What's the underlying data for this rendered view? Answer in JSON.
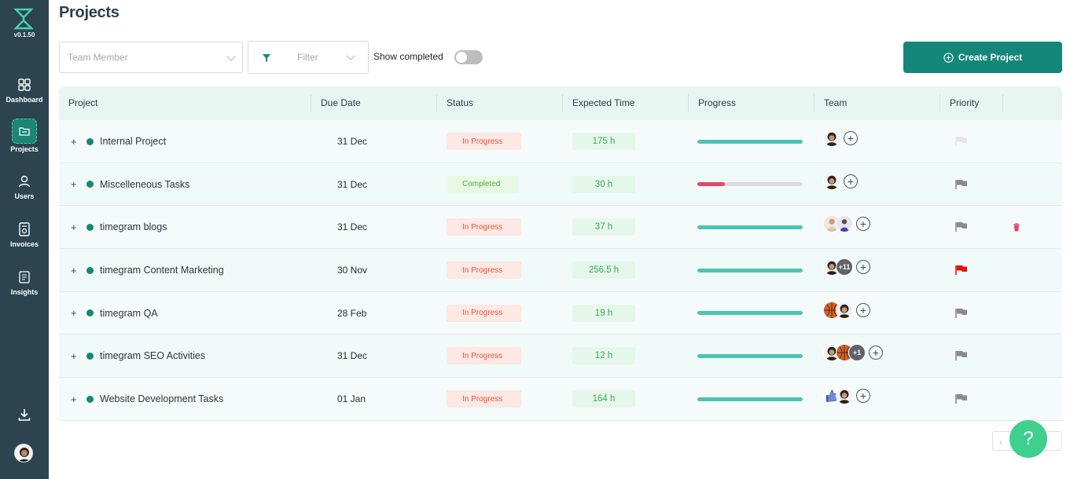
{
  "sidebar": {
    "version": "v0.1.50",
    "items": [
      {
        "label": "Dashboard",
        "icon": "grid-icon"
      },
      {
        "label": "Projects",
        "icon": "folder-icon"
      },
      {
        "label": "Users",
        "icon": "user-icon"
      },
      {
        "label": "Invoices",
        "icon": "invoice-icon"
      },
      {
        "label": "Insights",
        "icon": "report-icon"
      }
    ],
    "active": "Projects"
  },
  "header": {
    "title": "Projects"
  },
  "toolbar": {
    "team_member_placeholder": "Team Member",
    "filter_label": "Filter",
    "show_completed_label": "Show completed",
    "show_completed_on": false,
    "create_label": "Create Project"
  },
  "table": {
    "columns": [
      "Project",
      "Due Date",
      "Status",
      "Expected Time",
      "Progress",
      "Team",
      "Priority"
    ],
    "rows": [
      {
        "name": "Internal Project",
        "due": "31 Dec",
        "status": "In Progress",
        "hours": "175 h",
        "progress": 1.0,
        "progress_color": "#4cc3b6",
        "team": [
          {
            "kind": "face"
          }
        ],
        "extra": "",
        "priority_color": "#e6e6e6",
        "deletable": false
      },
      {
        "name": "Miscelleneous Tasks",
        "due": "31 Dec",
        "status": "Completed",
        "hours": "30 h",
        "progress": 0.26,
        "progress_color": "#e0476a",
        "team": [
          {
            "kind": "face"
          }
        ],
        "extra": "",
        "priority_color": "#8a8a8a",
        "deletable": false
      },
      {
        "name": "timegram blogs",
        "due": "31 Dec",
        "status": "In Progress",
        "hours": "37 h",
        "progress": 1.0,
        "progress_color": "#4cc3b6",
        "team": [
          {
            "kind": "man"
          },
          {
            "kind": "purple"
          }
        ],
        "extra": "",
        "priority_color": "#8a8a8a",
        "deletable": true
      },
      {
        "name": "timegram Content Marketing",
        "due": "30 Nov",
        "status": "In Progress",
        "hours": "256.5 h",
        "progress": 1.0,
        "progress_color": "#4cc3b6",
        "team": [
          {
            "kind": "face"
          }
        ],
        "extra": "+11",
        "priority_color": "#e81010",
        "deletable": false
      },
      {
        "name": "timegram QA",
        "due": "28 Feb",
        "status": "In Progress",
        "hours": "19 h",
        "progress": 1.0,
        "progress_color": "#4cc3b6",
        "team": [
          {
            "kind": "ball"
          },
          {
            "kind": "face"
          }
        ],
        "extra": "",
        "priority_color": "#8a8a8a",
        "deletable": false
      },
      {
        "name": "timegram SEO Activities",
        "due": "31 Dec",
        "status": "In Progress",
        "hours": "12 h",
        "progress": 1.0,
        "progress_color": "#4cc3b6",
        "team": [
          {
            "kind": "face"
          },
          {
            "kind": "ball"
          }
        ],
        "extra": "+1",
        "priority_color": "#8a8a8a",
        "deletable": false
      },
      {
        "name": "Website Development Tasks",
        "due": "01 Jan",
        "status": "In Progress",
        "hours": "164 h",
        "progress": 1.0,
        "progress_color": "#4cc3b6",
        "team": [
          {
            "kind": "thumb"
          },
          {
            "kind": "face"
          }
        ],
        "extra": "",
        "priority_color": "#8a8a8a",
        "deletable": false
      }
    ]
  },
  "colors": {
    "sidebar": "#2b4450",
    "accent": "#14877a",
    "help": "#3fcf8e"
  },
  "help_label": "?"
}
